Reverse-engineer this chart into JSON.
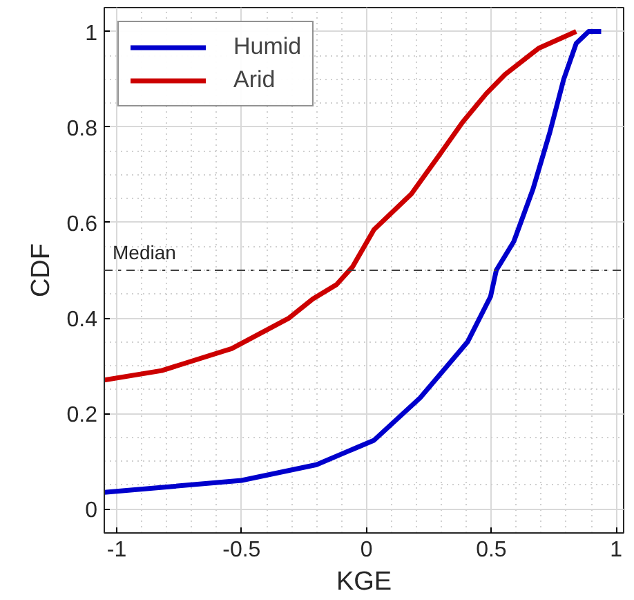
{
  "chart_data": {
    "type": "line",
    "xlabel": "KGE",
    "ylabel": "CDF",
    "xlim": [
      -1.05,
      1.03
    ],
    "ylim": [
      -0.05,
      1.05
    ],
    "xticks": [
      -1,
      -0.5,
      0,
      0.5,
      1
    ],
    "yticks": [
      0,
      0.2,
      0.4,
      0.6,
      0.8,
      1
    ],
    "grid": true,
    "legend": "top left",
    "line_style": "solid",
    "ref_lines": [
      {
        "axis": "y",
        "value": 0.5,
        "label": "Median",
        "color": "#404040",
        "line_style": "dashdot"
      }
    ],
    "series": [
      {
        "name": "Humid",
        "color": "#0000cc",
        "x": [
          -1.05,
          -0.5,
          -0.2,
          0.03,
          0.215,
          0.405,
          0.497,
          0.52,
          0.59,
          0.667,
          0.735,
          0.79,
          0.84,
          0.89,
          0.94
        ],
        "values": [
          0.035,
          0.06,
          0.093,
          0.144,
          0.233,
          0.35,
          0.445,
          0.5,
          0.56,
          0.67,
          0.79,
          0.9,
          0.975,
          1.0,
          1.0
        ]
      },
      {
        "name": "Arid",
        "color": "#cc0000",
        "x": [
          -1.05,
          -0.82,
          -0.54,
          -0.31,
          -0.215,
          -0.12,
          -0.056,
          0.03,
          0.18,
          0.29,
          0.385,
          0.48,
          0.555,
          0.69,
          0.84
        ],
        "values": [
          0.27,
          0.29,
          0.336,
          0.4,
          0.44,
          0.47,
          0.507,
          0.585,
          0.66,
          0.74,
          0.81,
          0.87,
          0.91,
          0.965,
          1.0
        ]
      }
    ]
  }
}
